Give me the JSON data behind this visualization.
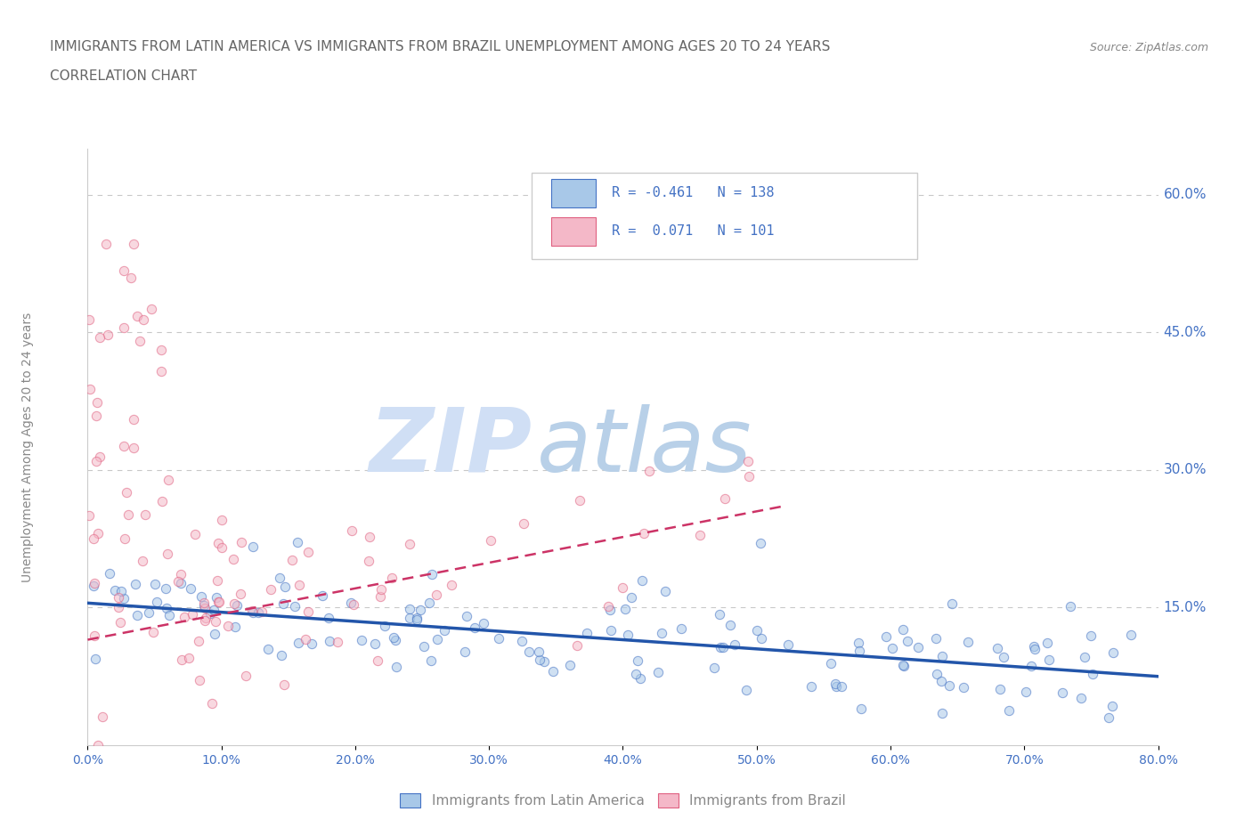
{
  "title_line1": "IMMIGRANTS FROM LATIN AMERICA VS IMMIGRANTS FROM BRAZIL UNEMPLOYMENT AMONG AGES 20 TO 24 YEARS",
  "title_line2": "CORRELATION CHART",
  "source_text": "Source: ZipAtlas.com",
  "ylabel": "Unemployment Among Ages 20 to 24 years",
  "xlim": [
    0.0,
    0.8
  ],
  "ylim": [
    0.0,
    0.65
  ],
  "xticks": [
    0.0,
    0.1,
    0.2,
    0.3,
    0.4,
    0.5,
    0.6,
    0.7,
    0.8
  ],
  "xticklabels": [
    "0.0%",
    "10.0%",
    "20.0%",
    "30.0%",
    "40.0%",
    "50.0%",
    "60.0%",
    "70.0%",
    "80.0%"
  ],
  "yticks_right": [
    0.15,
    0.3,
    0.45,
    0.6
  ],
  "ytick_labels_right": [
    "15.0%",
    "30.0%",
    "45.0%",
    "60.0%"
  ],
  "legend_r1_text": "R = -0.461   N = 138",
  "legend_r2_text": "R =  0.071   N = 101",
  "color_blue_fill": "#a8c8e8",
  "color_blue_edge": "#4472c4",
  "color_blue_line": "#2255aa",
  "color_pink_fill": "#f4b8c8",
  "color_pink_edge": "#e06080",
  "color_pink_line": "#cc3366",
  "color_text": "#4472c4",
  "color_title": "#666666",
  "color_source": "#888888",
  "color_ylabel": "#888888",
  "color_watermark": "#d0dff5",
  "watermark_zip": "ZIP",
  "watermark_atlas": "atlas",
  "scatter_size": 55,
  "scatter_alpha": 0.55,
  "legend_label1": "Immigrants from Latin America",
  "legend_label2": "Immigrants from Brazil",
  "blue_R": -0.461,
  "blue_N": 138,
  "pink_R": 0.071,
  "pink_N": 101,
  "blue_trend_x0": 0.0,
  "blue_trend_y0": 0.155,
  "blue_trend_x1": 0.8,
  "blue_trend_y1": 0.075,
  "pink_trend_x0": 0.0,
  "pink_trend_y0": 0.115,
  "pink_trend_x1": 0.5,
  "pink_trend_y1": 0.255
}
